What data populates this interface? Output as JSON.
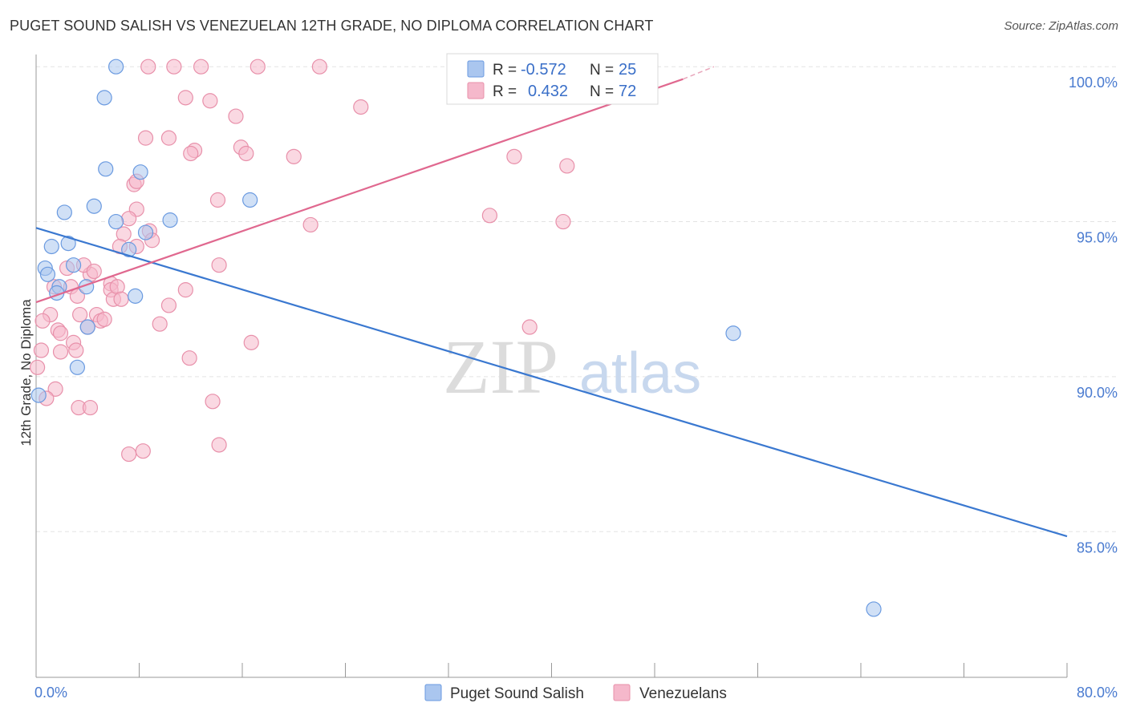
{
  "title": "PUGET SOUND SALISH VS VENEZUELAN 12TH GRADE, NO DIPLOMA CORRELATION CHART",
  "source": "Source: ZipAtlas.com",
  "watermark": {
    "zip": "ZIP",
    "atlas": "atlas"
  },
  "colors": {
    "blue_fill": "#aac6ef",
    "blue_stroke": "#6a9ae0",
    "blue_line": "#3a78d0",
    "pink_fill": "#f5b8cb",
    "pink_stroke": "#e890aa",
    "pink_line": "#e0688f",
    "tick_text": "#4a7bd0",
    "grid": "#e3e3e3"
  },
  "legend_box": {
    "row1": {
      "r_label": "R =",
      "r_value": "-0.572",
      "n_label": "N =",
      "n_value": "25"
    },
    "row2": {
      "r_label": "R =",
      "r_value": "0.432",
      "n_label": "N =",
      "n_value": "72"
    }
  },
  "bottom_legend": [
    "Puget Sound Salish",
    "Venezuelans"
  ],
  "chart_data": {
    "type": "scatter",
    "title": "PUGET SOUND SALISH VS VENEZUELAN 12TH GRADE, NO DIPLOMA CORRELATION CHART",
    "xlabel": "",
    "ylabel": "12th Grade, No Diploma",
    "xlim": [
      0,
      80
    ],
    "ylim": [
      80.3,
      100.6
    ],
    "x_ticks": [
      "0.0%",
      "80.0%"
    ],
    "y_ticks": [
      {
        "value": 85,
        "label": "85.0%"
      },
      {
        "value": 90,
        "label": "90.0%"
      },
      {
        "value": 95,
        "label": "95.0%"
      },
      {
        "value": 100,
        "label": "100.0%"
      }
    ],
    "grid": true,
    "legend_position": "top-center",
    "series": [
      {
        "name": "Puget Sound Salish",
        "r": -0.572,
        "n": 25,
        "trend": {
          "x": [
            0,
            80
          ],
          "y": [
            94.8,
            84.85
          ]
        },
        "points": [
          [
            6.2,
            100.0
          ],
          [
            5.3,
            99.0
          ],
          [
            5.4,
            96.7
          ],
          [
            8.1,
            96.6
          ],
          [
            4.5,
            95.5
          ],
          [
            2.2,
            95.3
          ],
          [
            16.6,
            95.7
          ],
          [
            6.2,
            95.0
          ],
          [
            10.4,
            95.05
          ],
          [
            8.5,
            94.65
          ],
          [
            1.2,
            94.2
          ],
          [
            2.5,
            94.3
          ],
          [
            7.2,
            94.1
          ],
          [
            0.7,
            93.5
          ],
          [
            2.9,
            93.6
          ],
          [
            0.9,
            93.3
          ],
          [
            1.8,
            92.9
          ],
          [
            3.9,
            92.9
          ],
          [
            1.6,
            92.7
          ],
          [
            7.7,
            92.6
          ],
          [
            4.0,
            91.6
          ],
          [
            3.2,
            90.3
          ],
          [
            0.2,
            89.4
          ],
          [
            54.1,
            91.4
          ],
          [
            65.0,
            82.5
          ]
        ]
      },
      {
        "name": "Venezuelans",
        "r": 0.432,
        "n": 72,
        "trend": {
          "x": [
            0,
            50.2
          ],
          "y": [
            92.4,
            99.6
          ]
        },
        "trend_dashed": {
          "x": [
            50.2,
            52.6
          ],
          "y": [
            99.6,
            100.0
          ]
        },
        "points": [
          [
            8.7,
            100.0
          ],
          [
            10.7,
            100.0
          ],
          [
            12.8,
            100.0
          ],
          [
            17.2,
            100.0
          ],
          [
            22.0,
            100.0
          ],
          [
            11.6,
            99.0
          ],
          [
            13.5,
            98.9
          ],
          [
            15.5,
            98.4
          ],
          [
            25.2,
            98.7
          ],
          [
            8.5,
            97.7
          ],
          [
            10.3,
            97.7
          ],
          [
            12.3,
            97.3
          ],
          [
            12.0,
            97.2
          ],
          [
            15.9,
            97.4
          ],
          [
            16.3,
            97.2
          ],
          [
            20.0,
            97.1
          ],
          [
            37.1,
            97.1
          ],
          [
            41.2,
            96.8
          ],
          [
            7.6,
            96.2
          ],
          [
            7.8,
            96.3
          ],
          [
            14.1,
            95.7
          ],
          [
            7.8,
            95.4
          ],
          [
            7.2,
            95.1
          ],
          [
            35.2,
            95.2
          ],
          [
            40.9,
            95.0
          ],
          [
            21.3,
            94.9
          ],
          [
            6.8,
            94.6
          ],
          [
            8.8,
            94.7
          ],
          [
            9.0,
            94.4
          ],
          [
            6.5,
            94.2
          ],
          [
            7.8,
            94.2
          ],
          [
            2.4,
            93.5
          ],
          [
            4.2,
            93.3
          ],
          [
            14.2,
            93.6
          ],
          [
            3.7,
            93.6
          ],
          [
            4.5,
            93.4
          ],
          [
            2.7,
            92.9
          ],
          [
            5.8,
            93.0
          ],
          [
            1.4,
            92.9
          ],
          [
            3.2,
            92.6
          ],
          [
            5.8,
            92.8
          ],
          [
            6.0,
            92.5
          ],
          [
            6.3,
            92.9
          ],
          [
            6.6,
            92.5
          ],
          [
            11.6,
            92.8
          ],
          [
            10.3,
            92.3
          ],
          [
            1.1,
            92.0
          ],
          [
            3.4,
            92.0
          ],
          [
            4.7,
            92.0
          ],
          [
            5.0,
            91.8
          ],
          [
            5.3,
            91.85
          ],
          [
            0.5,
            91.8
          ],
          [
            4.0,
            91.6
          ],
          [
            9.6,
            91.7
          ],
          [
            38.3,
            91.6
          ],
          [
            1.7,
            91.5
          ],
          [
            1.9,
            91.4
          ],
          [
            2.9,
            91.1
          ],
          [
            16.7,
            91.1
          ],
          [
            0.4,
            90.85
          ],
          [
            1.9,
            90.8
          ],
          [
            3.1,
            90.85
          ],
          [
            11.9,
            90.6
          ],
          [
            0.1,
            90.3
          ],
          [
            1.5,
            89.6
          ],
          [
            0.8,
            89.3
          ],
          [
            13.7,
            89.2
          ],
          [
            3.3,
            89.0
          ],
          [
            4.2,
            89.0
          ],
          [
            7.2,
            87.5
          ],
          [
            8.3,
            87.6
          ],
          [
            14.2,
            87.8
          ]
        ]
      }
    ]
  }
}
